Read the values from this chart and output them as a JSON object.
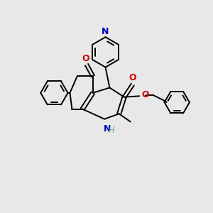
{
  "bg_color": "#e8e8e8",
  "bond_color": "#000000",
  "n_color": "#0000bb",
  "o_color": "#cc0000",
  "h_color": "#66aaaa",
  "line_width": 1.4,
  "font_size": 8.5,
  "xlim": [
    0,
    10
  ],
  "ylim": [
    0,
    10
  ]
}
